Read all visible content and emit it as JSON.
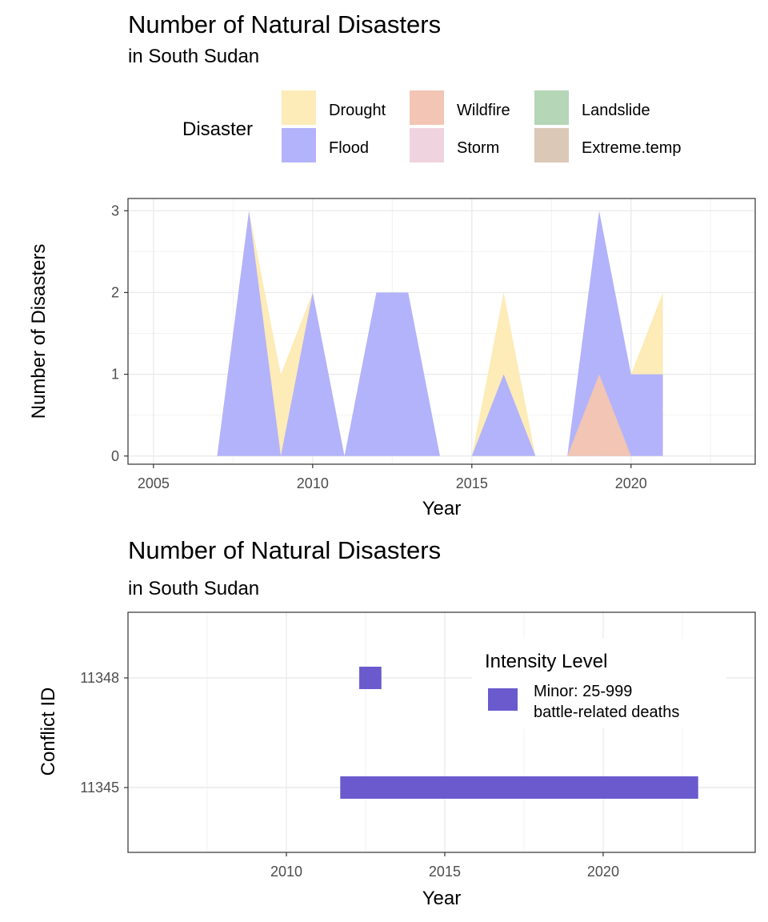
{
  "chart_data": [
    {
      "type": "area",
      "title": "Number of Natural Disasters",
      "subtitle": "in South Sudan",
      "xlabel": "Year",
      "ylabel": "Number of Disasters",
      "xlim": [
        2004.2,
        2023.9
      ],
      "ylim": [
        -0.1,
        3.15
      ],
      "x_ticks": [
        2005,
        2010,
        2015,
        2020
      ],
      "y_ticks": [
        0,
        1,
        2,
        3
      ],
      "grid": true,
      "legend": {
        "position": "top",
        "title": "Disaster",
        "entries": [
          {
            "name": "Drought",
            "color": "#FDEBB8"
          },
          {
            "name": "Flood",
            "color": "#B3B3FB"
          },
          {
            "name": "Wildfire",
            "color": "#F2C5B4"
          },
          {
            "name": "Storm",
            "color": "#EFD4DF"
          },
          {
            "name": "Landslide",
            "color": "#B5D6B7"
          },
          {
            "name": "Extreme.temp",
            "color": "#DBC8B7"
          }
        ]
      },
      "series": [
        {
          "name": "Drought",
          "color": "#FDEBB8",
          "polygons": [
            [
              [
                2007,
                0
              ],
              [
                2008,
                3
              ],
              [
                2009,
                1
              ],
              [
                2010,
                2
              ],
              [
                2011,
                0
              ]
            ],
            [
              [
                2015,
                0
              ],
              [
                2016,
                2
              ],
              [
                2017,
                0
              ]
            ],
            [
              [
                2019,
                0
              ],
              [
                2020,
                1
              ],
              [
                2021,
                2
              ],
              [
                2021,
                0
              ]
            ]
          ]
        },
        {
          "name": "Flood",
          "color": "#B3B3FB",
          "polygons": [
            [
              [
                2007,
                0
              ],
              [
                2008,
                3
              ],
              [
                2009,
                0
              ]
            ],
            [
              [
                2009,
                0
              ],
              [
                2010,
                2
              ],
              [
                2011,
                0
              ]
            ],
            [
              [
                2011,
                0
              ],
              [
                2012,
                2
              ],
              [
                2013,
                2
              ],
              [
                2014,
                0
              ]
            ],
            [
              [
                2015,
                0
              ],
              [
                2016,
                1
              ],
              [
                2017,
                0
              ]
            ],
            [
              [
                2018,
                0
              ],
              [
                2019,
                3
              ],
              [
                2020,
                1
              ],
              [
                2021,
                1
              ],
              [
                2021,
                0
              ]
            ]
          ]
        },
        {
          "name": "Wildfire",
          "color": "#F2C5B4",
          "polygons": [
            [
              [
                2018,
                0
              ],
              [
                2019,
                1
              ],
              [
                2020,
                0
              ]
            ]
          ]
        }
      ]
    },
    {
      "type": "timeline",
      "title": "Number of Natural Disasters",
      "subtitle": "in South Sudan",
      "xlabel": "Year",
      "ylabel": "Conflict ID",
      "xlim": [
        2005.0,
        2024.8
      ],
      "x_ticks": [
        2010,
        2015,
        2020
      ],
      "categories": [
        "11348",
        "11345"
      ],
      "grid": true,
      "legend": {
        "position": "inside-top-right",
        "title": "Intensity Level",
        "entries": [
          {
            "name_line1": "Minor: 25-999",
            "name_line2": "battle-related deaths",
            "color": "#6A5ACD"
          }
        ]
      },
      "segments": [
        {
          "id": "11348",
          "start": 2012.3,
          "end": 2013.0,
          "color": "#6A5ACD"
        },
        {
          "id": "11345",
          "start": 2011.7,
          "end": 2023.0,
          "color": "#6A5ACD"
        }
      ]
    }
  ]
}
